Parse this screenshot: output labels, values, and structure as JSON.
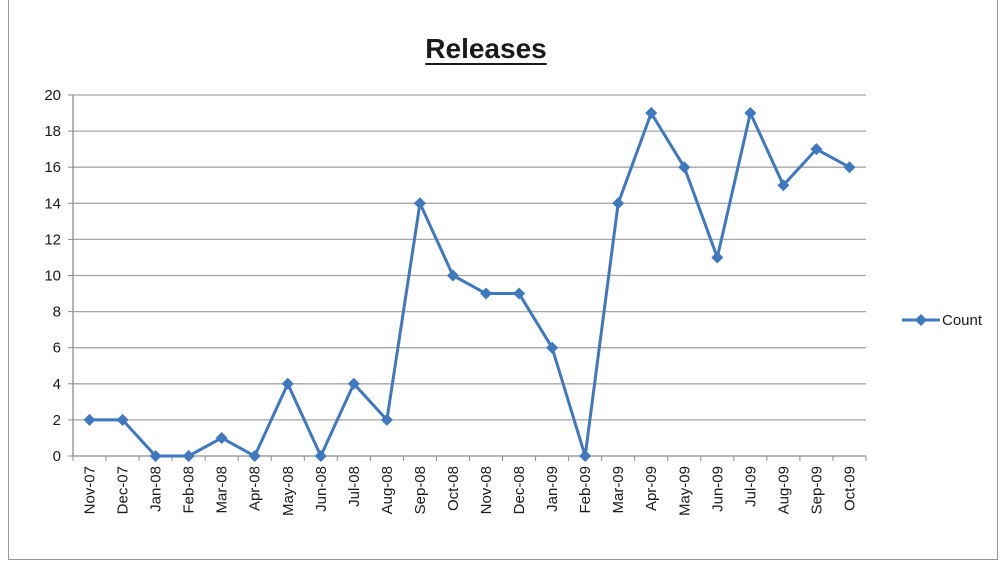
{
  "chart_data": {
    "type": "line",
    "title": "Releases",
    "xlabel": "",
    "ylabel": "",
    "categories": [
      "Nov-07",
      "Dec-07",
      "Jan-08",
      "Feb-08",
      "Mar-08",
      "Apr-08",
      "May-08",
      "Jun-08",
      "Jul-08",
      "Aug-08",
      "Sep-08",
      "Oct-08",
      "Nov-08",
      "Dec-08",
      "Jan-09",
      "Feb-09",
      "Mar-09",
      "Apr-09",
      "May-09",
      "Jun-09",
      "Jul-09",
      "Aug-09",
      "Sep-09",
      "Oct-09"
    ],
    "series": [
      {
        "name": "Count",
        "color": "#3f78be",
        "marker": "diamond",
        "values": [
          2,
          2,
          0,
          0,
          1,
          0,
          4,
          0,
          4,
          2,
          14,
          10,
          9,
          9,
          6,
          0,
          14,
          19,
          16,
          11,
          19,
          15,
          17,
          16
        ]
      }
    ],
    "ylim": [
      0,
      20
    ],
    "yticks": [
      0,
      2,
      4,
      6,
      8,
      10,
      12,
      14,
      16,
      18,
      20
    ],
    "grid": true,
    "legend_position": "right"
  }
}
